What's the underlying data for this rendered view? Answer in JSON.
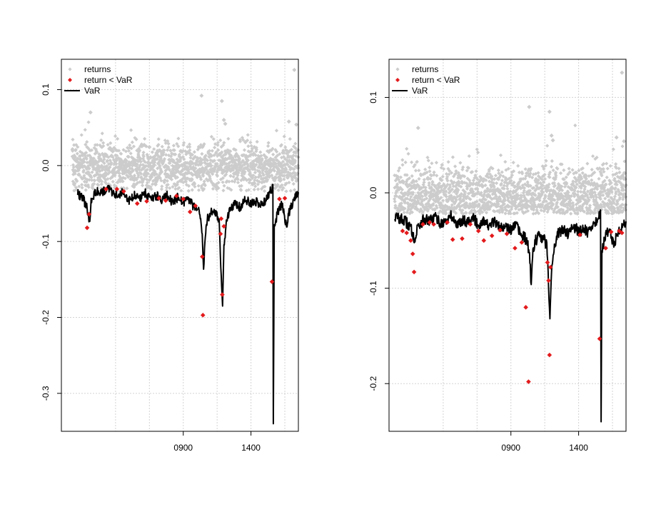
{
  "colors": {
    "returns": "#cccccc",
    "breach": "#e31a1c",
    "var": "#000000",
    "grid": "#d3d3d3"
  },
  "chart_data": [
    {
      "type": "scatter",
      "panel": "left",
      "xlim": [
        0,
        1750
      ],
      "ylim": [
        -0.35,
        0.14
      ],
      "x_ticks": [
        {
          "value": 900,
          "label": "0900"
        },
        {
          "value": 1400,
          "label": "1400"
        }
      ],
      "x_grid": [
        400,
        650,
        900,
        1150,
        1400,
        1650
      ],
      "y_ticks": [
        {
          "value": 0.1,
          "label": "0.1"
        },
        {
          "value": 0.0,
          "label": "0.0"
        },
        {
          "value": -0.1,
          "label": "-0.1"
        },
        {
          "value": -0.2,
          "label": "-0.2"
        },
        {
          "value": -0.3,
          "label": "-0.3"
        }
      ],
      "grid": true,
      "legend": {
        "position": "top-left",
        "entries": [
          "returns",
          "return < VaR",
          "VaR"
        ]
      },
      "var_baseline": -0.038,
      "var_line": [
        [
          120,
          -0.036
        ],
        [
          140,
          -0.04
        ],
        [
          160,
          -0.043
        ],
        [
          175,
          -0.05
        ],
        [
          190,
          -0.055
        ],
        [
          200,
          -0.07
        ],
        [
          210,
          -0.075
        ],
        [
          220,
          -0.045
        ],
        [
          260,
          -0.033
        ],
        [
          300,
          -0.035
        ],
        [
          340,
          -0.03
        ],
        [
          380,
          -0.036
        ],
        [
          420,
          -0.04
        ],
        [
          460,
          -0.034
        ],
        [
          500,
          -0.045
        ],
        [
          540,
          -0.038
        ],
        [
          580,
          -0.042
        ],
        [
          620,
          -0.037
        ],
        [
          660,
          -0.043
        ],
        [
          700,
          -0.039
        ],
        [
          740,
          -0.046
        ],
        [
          780,
          -0.04
        ],
        [
          820,
          -0.048
        ],
        [
          860,
          -0.042
        ],
        [
          900,
          -0.05
        ],
        [
          940,
          -0.044
        ],
        [
          980,
          -0.055
        ],
        [
          1020,
          -0.06
        ],
        [
          1040,
          -0.09
        ],
        [
          1050,
          -0.14
        ],
        [
          1060,
          -0.095
        ],
        [
          1080,
          -0.07
        ],
        [
          1110,
          -0.06
        ],
        [
          1140,
          -0.065
        ],
        [
          1165,
          -0.07
        ],
        [
          1180,
          -0.15
        ],
        [
          1190,
          -0.185
        ],
        [
          1200,
          -0.11
        ],
        [
          1215,
          -0.08
        ],
        [
          1240,
          -0.06
        ],
        [
          1280,
          -0.05
        ],
        [
          1320,
          -0.055
        ],
        [
          1360,
          -0.045
        ],
        [
          1400,
          -0.05
        ],
        [
          1440,
          -0.048
        ],
        [
          1480,
          -0.052
        ],
        [
          1510,
          -0.045
        ],
        [
          1540,
          -0.035
        ],
        [
          1555,
          -0.03
        ],
        [
          1562,
          -0.025
        ],
        [
          1565,
          -0.34
        ],
        [
          1572,
          -0.08
        ],
        [
          1600,
          -0.06
        ],
        [
          1630,
          -0.05
        ],
        [
          1660,
          -0.08
        ],
        [
          1690,
          -0.055
        ],
        [
          1720,
          -0.045
        ],
        [
          1750,
          -0.035
        ]
      ],
      "breaches": [
        [
          190,
          -0.082
        ],
        [
          205,
          -0.064
        ],
        [
          330,
          -0.031
        ],
        [
          410,
          -0.031
        ],
        [
          460,
          -0.034
        ],
        [
          560,
          -0.05
        ],
        [
          630,
          -0.047
        ],
        [
          720,
          -0.043
        ],
        [
          770,
          -0.046
        ],
        [
          850,
          -0.04
        ],
        [
          900,
          -0.044
        ],
        [
          950,
          -0.061
        ],
        [
          990,
          -0.053
        ],
        [
          1040,
          -0.12
        ],
        [
          1045,
          -0.197
        ],
        [
          1175,
          -0.09
        ],
        [
          1180,
          -0.07
        ],
        [
          1188,
          -0.17
        ],
        [
          1200,
          -0.08
        ],
        [
          1555,
          -0.153
        ],
        [
          1610,
          -0.044
        ],
        [
          1650,
          -0.043
        ]
      ],
      "outliers": [
        [
          215,
          0.07
        ],
        [
          1035,
          0.092
        ],
        [
          1185,
          0.085
        ],
        [
          1720,
          0.126
        ],
        [
          1200,
          0.06
        ],
        [
          1210,
          0.055
        ],
        [
          1680,
          0.058
        ],
        [
          1735,
          0.054
        ]
      ],
      "returns_model": {
        "n": 1650,
        "x_start": 80,
        "x_end": 1750,
        "mean": -0.002,
        "spread": 0.035,
        "seed": 7
      }
    },
    {
      "type": "scatter",
      "panel": "right",
      "xlim": [
        0,
        1750
      ],
      "ylim": [
        -0.25,
        0.14
      ],
      "x_ticks": [
        {
          "value": 900,
          "label": "0900"
        },
        {
          "value": 1400,
          "label": "1400"
        }
      ],
      "x_grid": [
        400,
        650,
        900,
        1150,
        1400,
        1650
      ],
      "y_ticks": [
        {
          "value": 0.1,
          "label": "0.1"
        },
        {
          "value": 0.0,
          "label": "0.0"
        },
        {
          "value": -0.1,
          "label": "-0.1"
        },
        {
          "value": -0.2,
          "label": "-0.2"
        }
      ],
      "grid": true,
      "legend": {
        "position": "top-left",
        "entries": [
          "returns",
          "return < VaR",
          "VaR"
        ]
      },
      "var_baseline": -0.026,
      "var_line": [
        [
          40,
          -0.025
        ],
        [
          80,
          -0.027
        ],
        [
          120,
          -0.03
        ],
        [
          150,
          -0.035
        ],
        [
          170,
          -0.04
        ],
        [
          180,
          -0.045
        ],
        [
          195,
          -0.05
        ],
        [
          210,
          -0.035
        ],
        [
          260,
          -0.028
        ],
        [
          300,
          -0.03
        ],
        [
          340,
          -0.025
        ],
        [
          380,
          -0.032
        ],
        [
          420,
          -0.03
        ],
        [
          460,
          -0.024
        ],
        [
          500,
          -0.034
        ],
        [
          540,
          -0.028
        ],
        [
          580,
          -0.03
        ],
        [
          620,
          -0.026
        ],
        [
          660,
          -0.034
        ],
        [
          700,
          -0.028
        ],
        [
          740,
          -0.036
        ],
        [
          780,
          -0.03
        ],
        [
          820,
          -0.038
        ],
        [
          860,
          -0.032
        ],
        [
          900,
          -0.04
        ],
        [
          940,
          -0.034
        ],
        [
          980,
          -0.045
        ],
        [
          1020,
          -0.05
        ],
        [
          1040,
          -0.07
        ],
        [
          1050,
          -0.098
        ],
        [
          1060,
          -0.065
        ],
        [
          1080,
          -0.05
        ],
        [
          1110,
          -0.045
        ],
        [
          1140,
          -0.048
        ],
        [
          1165,
          -0.055
        ],
        [
          1178,
          -0.095
        ],
        [
          1188,
          -0.132
        ],
        [
          1200,
          -0.08
        ],
        [
          1215,
          -0.06
        ],
        [
          1240,
          -0.045
        ],
        [
          1280,
          -0.038
        ],
        [
          1320,
          -0.042
        ],
        [
          1360,
          -0.035
        ],
        [
          1400,
          -0.04
        ],
        [
          1440,
          -0.038
        ],
        [
          1480,
          -0.042
        ],
        [
          1510,
          -0.035
        ],
        [
          1540,
          -0.028
        ],
        [
          1558,
          -0.02
        ],
        [
          1562,
          -0.018
        ],
        [
          1566,
          -0.24
        ],
        [
          1572,
          -0.06
        ],
        [
          1600,
          -0.045
        ],
        [
          1630,
          -0.038
        ],
        [
          1660,
          -0.055
        ],
        [
          1690,
          -0.042
        ],
        [
          1720,
          -0.035
        ],
        [
          1750,
          -0.03
        ]
      ],
      "breaches": [
        [
          100,
          -0.04
        ],
        [
          130,
          -0.042
        ],
        [
          160,
          -0.05
        ],
        [
          175,
          -0.064
        ],
        [
          185,
          -0.083
        ],
        [
          250,
          -0.033
        ],
        [
          300,
          -0.031
        ],
        [
          330,
          -0.033
        ],
        [
          430,
          -0.031
        ],
        [
          470,
          -0.049
        ],
        [
          540,
          -0.048
        ],
        [
          600,
          -0.033
        ],
        [
          660,
          -0.04
        ],
        [
          700,
          -0.05
        ],
        [
          760,
          -0.045
        ],
        [
          820,
          -0.039
        ],
        [
          870,
          -0.043
        ],
        [
          930,
          -0.058
        ],
        [
          980,
          -0.052
        ],
        [
          1010,
          -0.12
        ],
        [
          1030,
          -0.198
        ],
        [
          1170,
          -0.073
        ],
        [
          1178,
          -0.092
        ],
        [
          1185,
          -0.17
        ],
        [
          1192,
          -0.078
        ],
        [
          1410,
          -0.044
        ],
        [
          1555,
          -0.153
        ],
        [
          1600,
          -0.058
        ],
        [
          1640,
          -0.041
        ],
        [
          1700,
          -0.04
        ],
        [
          1720,
          -0.042
        ]
      ],
      "outliers": [
        [
          215,
          0.068
        ],
        [
          1035,
          0.09
        ],
        [
          1185,
          0.085
        ],
        [
          1720,
          0.126
        ],
        [
          1200,
          0.06
        ],
        [
          1210,
          0.055
        ],
        [
          1680,
          0.058
        ],
        [
          1735,
          0.054
        ]
      ],
      "returns_model": {
        "n": 1650,
        "x_start": 40,
        "x_end": 1750,
        "mean": -0.002,
        "spread": 0.035,
        "seed": 11
      }
    }
  ]
}
